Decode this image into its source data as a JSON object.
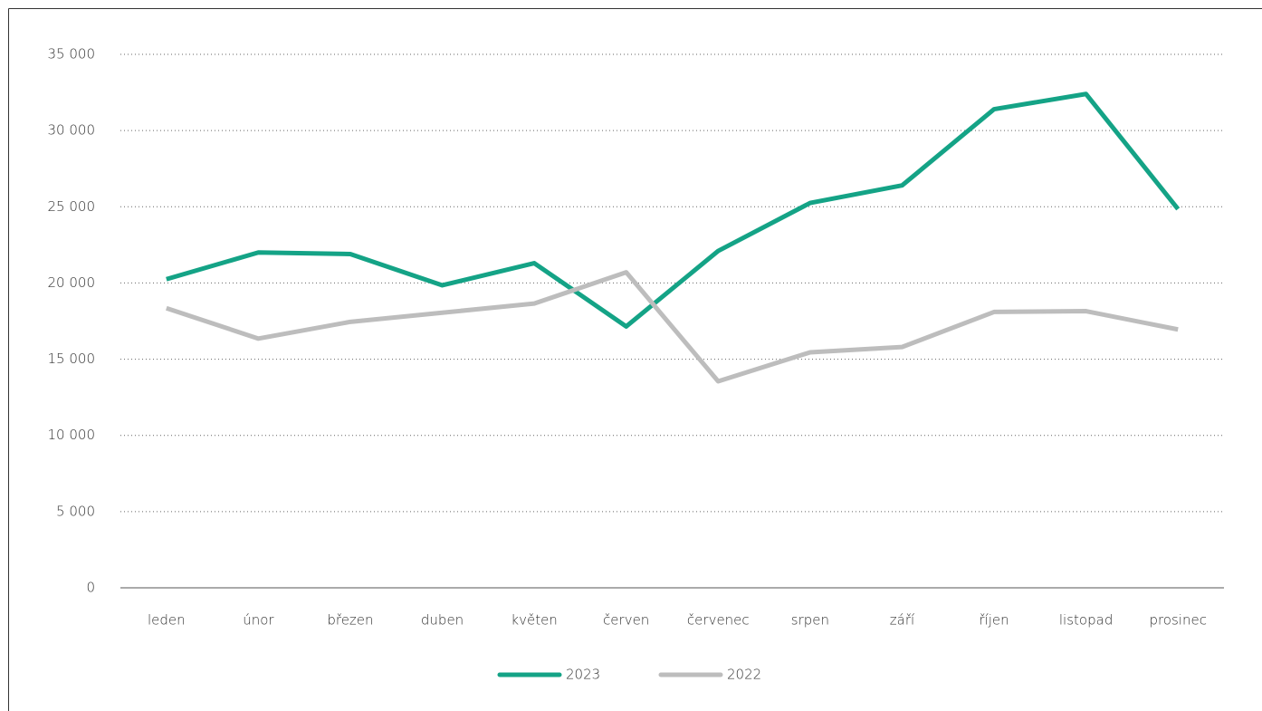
{
  "chart_data": {
    "type": "line",
    "categories": [
      "leden",
      "únor",
      "březen",
      "duben",
      "květen",
      "červen",
      "červenec",
      "srpen",
      "září",
      "říjen",
      "listopad",
      "prosinec"
    ],
    "series": [
      {
        "name": "2023",
        "color": "#14a386",
        "values": [
          20250,
          22000,
          21900,
          19850,
          21300,
          17150,
          22100,
          25250,
          26400,
          31400,
          32400,
          24850
        ]
      },
      {
        "name": "2022",
        "color": "#bdbdbd",
        "values": [
          18350,
          16350,
          17450,
          18050,
          18650,
          20700,
          13550,
          15450,
          15800,
          18100,
          18150,
          16950
        ]
      }
    ],
    "ylim": [
      0,
      35000
    ],
    "yticks": [
      0,
      {
        "value": 5000,
        "label": "5 000"
      },
      {
        "value": 10000,
        "label": "10 000"
      },
      {
        "value": 15000,
        "label": "15 000"
      },
      {
        "value": 20000,
        "label": "20 000"
      },
      {
        "value": 25000,
        "label": "25 000"
      },
      {
        "value": 30000,
        "label": "30 000"
      },
      {
        "value": 35000,
        "label": "35 000"
      }
    ],
    "grid": true,
    "legend": "bottom"
  }
}
